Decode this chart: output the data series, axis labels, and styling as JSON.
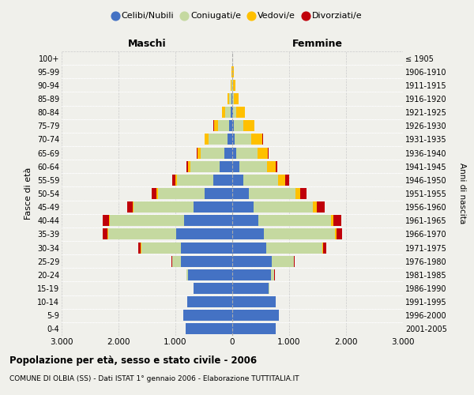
{
  "age_groups": [
    "0-4",
    "5-9",
    "10-14",
    "15-19",
    "20-24",
    "25-29",
    "30-34",
    "35-39",
    "40-44",
    "45-49",
    "50-54",
    "55-59",
    "60-64",
    "65-69",
    "70-74",
    "75-79",
    "80-84",
    "85-89",
    "90-94",
    "95-99",
    "100+"
  ],
  "birth_years": [
    "2001-2005",
    "1996-2000",
    "1991-1995",
    "1986-1990",
    "1981-1985",
    "1976-1980",
    "1971-1975",
    "1966-1970",
    "1961-1965",
    "1956-1960",
    "1951-1955",
    "1946-1950",
    "1941-1945",
    "1936-1940",
    "1931-1935",
    "1926-1930",
    "1921-1925",
    "1916-1920",
    "1911-1915",
    "1906-1910",
    "≤ 1905"
  ],
  "maschi_celibe": [
    820,
    860,
    790,
    680,
    780,
    900,
    900,
    980,
    850,
    680,
    490,
    340,
    220,
    140,
    90,
    55,
    25,
    10,
    5,
    2,
    1
  ],
  "maschi_coniugato": [
    0,
    0,
    0,
    5,
    25,
    150,
    700,
    1200,
    1300,
    1050,
    820,
    630,
    520,
    420,
    330,
    200,
    100,
    40,
    12,
    4,
    1
  ],
  "maschi_vedovo": [
    0,
    0,
    0,
    0,
    0,
    2,
    5,
    10,
    15,
    20,
    25,
    30,
    35,
    50,
    60,
    70,
    55,
    30,
    12,
    5,
    2
  ],
  "maschi_divorziato": [
    0,
    0,
    0,
    0,
    3,
    15,
    45,
    90,
    110,
    100,
    75,
    55,
    25,
    12,
    6,
    3,
    1,
    0,
    0,
    0,
    0
  ],
  "femmine_celibe": [
    760,
    820,
    770,
    640,
    680,
    700,
    600,
    560,
    460,
    370,
    290,
    190,
    120,
    70,
    40,
    25,
    10,
    4,
    2,
    1,
    0
  ],
  "femmine_coniugato": [
    0,
    0,
    0,
    10,
    60,
    380,
    980,
    1250,
    1280,
    1050,
    820,
    620,
    490,
    380,
    290,
    170,
    65,
    22,
    7,
    2,
    0
  ],
  "femmine_vedovo": [
    0,
    0,
    0,
    0,
    2,
    5,
    15,
    25,
    40,
    60,
    90,
    120,
    150,
    180,
    200,
    190,
    145,
    90,
    45,
    18,
    5
  ],
  "femmine_divorziato": [
    0,
    0,
    0,
    0,
    3,
    15,
    55,
    100,
    140,
    140,
    100,
    65,
    30,
    12,
    5,
    2,
    1,
    0,
    0,
    0,
    0
  ],
  "color_celibe": "#4472c4",
  "color_coniugato": "#c5d9a0",
  "color_vedovo": "#ffc000",
  "color_divorziato": "#c0000a",
  "title": "Popolazione per età, sesso e stato civile - 2006",
  "subtitle": "COMUNE DI OLBIA (SS) - Dati ISTAT 1° gennaio 2006 - Elaborazione TUTTITALIA.IT",
  "xlabel_left": "Maschi",
  "xlabel_right": "Femmine",
  "ylabel_left": "Fasce di età",
  "ylabel_right": "Anni di nascita",
  "xlim": 3000,
  "background_color": "#f0f0eb",
  "grid_color": "#cccccc",
  "legend_labels": [
    "Celibi/Nubili",
    "Coniugati/e",
    "Vedovi/e",
    "Divorziati/e"
  ]
}
